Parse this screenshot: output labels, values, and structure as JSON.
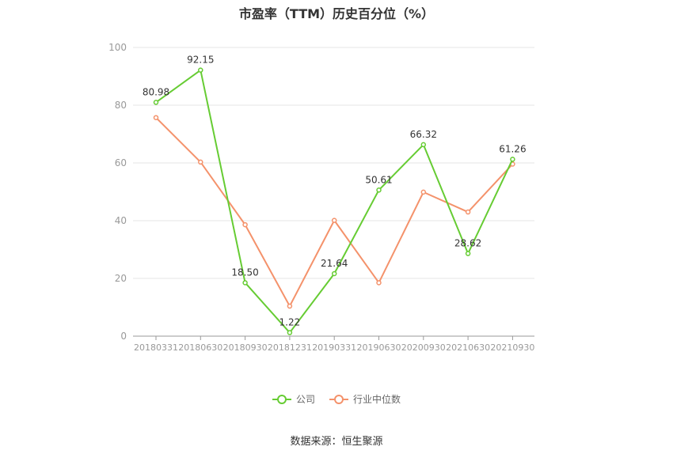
{
  "chart_data": {
    "type": "line",
    "title": "市盈率（TTM）历史百分位（%）",
    "categories": [
      "20180331",
      "20180630",
      "20180930",
      "20181231",
      "20190331",
      "20190630",
      "20200930",
      "20210630",
      "20210930"
    ],
    "series": [
      {
        "name": "公司",
        "color": "#66cc33",
        "values": [
          80.98,
          92.15,
          18.5,
          1.22,
          21.64,
          50.61,
          66.32,
          28.62,
          61.26
        ],
        "labels": [
          "80.98",
          "92.15",
          "18.50",
          "1.22",
          "21.64",
          "50.61",
          "66.32",
          "28.62",
          "61.26"
        ]
      },
      {
        "name": "行业中位数",
        "color": "#f4926b",
        "values": [
          75.7,
          60.3,
          38.6,
          10.4,
          40.1,
          18.5,
          49.9,
          43.0,
          59.6
        ]
      }
    ],
    "ylim": [
      0,
      100
    ],
    "yticks": [
      0,
      20,
      40,
      60,
      80,
      100
    ],
    "grid": true,
    "legend_position": "bottom"
  },
  "source": "数据来源：恒生聚源"
}
